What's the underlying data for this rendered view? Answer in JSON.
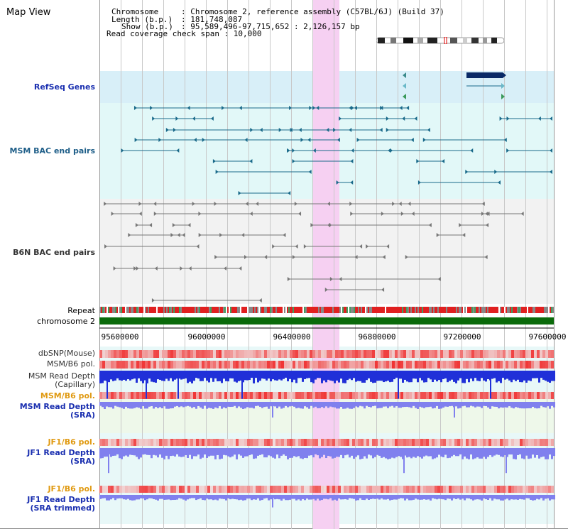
{
  "title": "Map View",
  "info": {
    "chromosome_label": "Chromosome",
    "chromosome_value": ": Chromosome 2, reference assembly (C57BL/6J) (Build 37)",
    "length_label": "Length (b.p.)",
    "length_value": ": 181,748,087",
    "show_label": "Show (b.p.)",
    "show_value": ": 95,589,496-97,715,652 : 2,126,157 bp",
    "read_coverage": "Read coverage check span : 10,000"
  },
  "tracks": {
    "refseq": "RefSeq Genes",
    "msm_bac": "MSM BAC end pairs",
    "b6n_bac": "B6N BAC end pairs",
    "repeat": "Repeat",
    "chromosome": "chromosome 2",
    "dbsnp": "dbSNP(Mouse)",
    "msm_b6_pol": "MSM/B6 pol.",
    "msm_read_cap_1": "MSM Read Depth",
    "msm_read_cap_2": "(Capillary)",
    "msm_b6_pol2": "MSM/B6 pol.",
    "msm_read_sra_1": "MSM Read Depth",
    "msm_read_sra_2": "(SRA)",
    "jf1_pol": "JF1/B6 pol.",
    "jf1_read_1": "JF1 Read Depth",
    "jf1_read_2": "(SRA)",
    "jf1_pol2": "JF1/B6 pol.",
    "jf1_read_trim_1": "JF1 Read Depth",
    "jf1_read_trim_2": "(SRA trimmed)"
  },
  "axis": {
    "ticks": [
      "95600000",
      "96000000",
      "96400000",
      "96800000",
      "97200000",
      "97600000"
    ]
  },
  "colors": {
    "refseq_bg": "#d8eff8",
    "msm_bac_bg": "#e2f8f8",
    "b6n_bac_bg": "#f2f2f2",
    "highlight": "#f6d0f2",
    "gene": "#0a2a66",
    "msm_feature": "#1a6a8a",
    "b6n_feature": "#777777",
    "chromosome_bar": "#0a6a0a",
    "depth_capillary": "#2030d8",
    "depth_sra": "#8080ee"
  }
}
